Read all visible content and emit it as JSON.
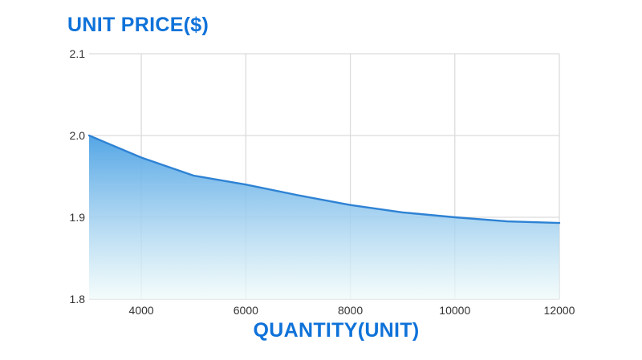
{
  "title": "UNIT PRICE($)",
  "x_axis_title": "QUANTITY(UNIT)",
  "colors": {
    "background": "#ffffff",
    "title_blue": "#0f72d9",
    "line_blue": "#2e82d4",
    "area_gradient_top": "#4ba1e4",
    "area_gradient_bottom": "#f0fbfa",
    "gridline": "#dcdcdc",
    "tick_label": "#333333"
  },
  "chart_data": {
    "type": "area",
    "title": "UNIT PRICE($)",
    "xlabel": "QUANTITY(UNIT)",
    "ylabel": "UNIT PRICE($)",
    "x": [
      3000,
      4000,
      5000,
      6000,
      7000,
      8000,
      9000,
      10000,
      11000,
      12000
    ],
    "series": [
      {
        "name": "unit price",
        "values": [
          2.0,
          1.973,
          1.951,
          1.94,
          1.927,
          1.915,
          1.906,
          1.9,
          1.895,
          1.893
        ]
      }
    ],
    "xlim": [
      3000,
      12000
    ],
    "ylim": [
      1.8,
      2.1
    ],
    "x_ticks": [
      4000,
      6000,
      8000,
      10000,
      12000
    ],
    "x_tick_labels": [
      "4000",
      "6000",
      "8000",
      "10000",
      "12000"
    ],
    "y_ticks": [
      2.1,
      2.0,
      1.9,
      1.8
    ],
    "y_tick_labels": [
      "2.1",
      "2.0",
      "1.9",
      "1.8"
    ],
    "grid": true,
    "legend": false,
    "area_gradient": true
  }
}
